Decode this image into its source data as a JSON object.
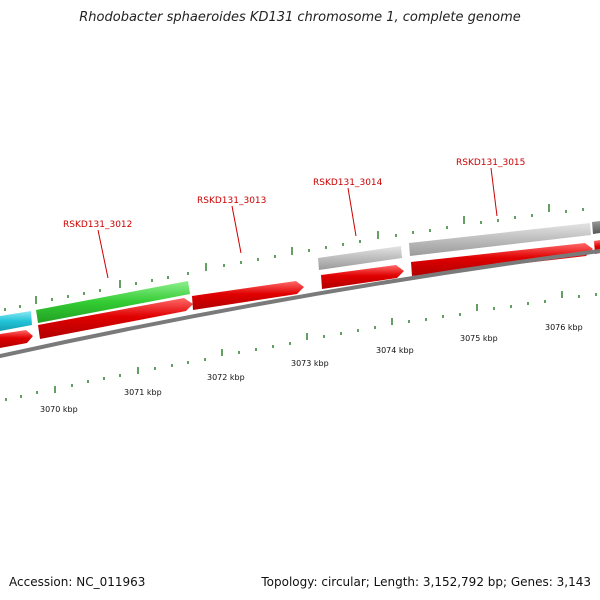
{
  "title": "Rhodobacter sphaeroides KD131 chromosome 1, complete genome",
  "footer": {
    "accession": "Accession: NC_011963",
    "summary": "Topology: circular; Length: 3,152,792 bp; Genes: 3,143"
  },
  "colors": {
    "cds_forward": "#e00000",
    "gene_green": "#33cc33",
    "gene_cyan": "#22c4d8",
    "gene_grey": "#bdbdbd",
    "backbone": "#7a7a7a",
    "tick": "#227722",
    "label_red": "#cc0000"
  },
  "gene_labels": [
    {
      "text": "RSKD131_3012"
    },
    {
      "text": "RSKD131_3013"
    },
    {
      "text": "RSKD131_3014"
    },
    {
      "text": "RSKD131_3015"
    }
  ],
  "scale_labels": [
    "3070 kbp",
    "3071 kbp",
    "3072 kbp",
    "3073 kbp",
    "3074 kbp",
    "3075 kbp",
    "3076 kbp"
  ]
}
